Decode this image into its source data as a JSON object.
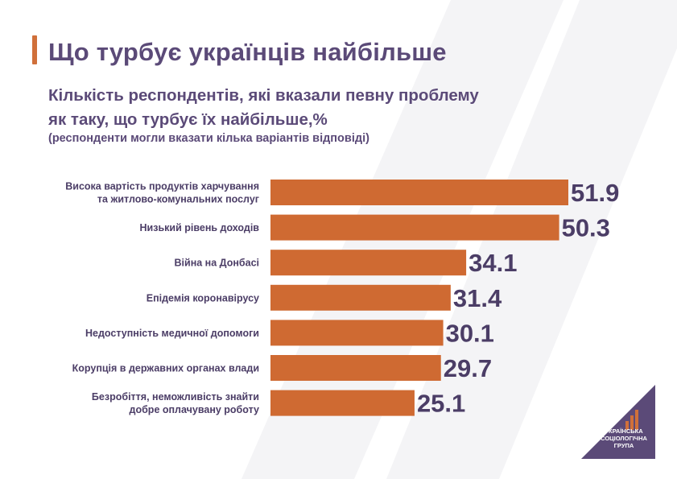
{
  "header": {
    "title": "Що турбує українців найбільше",
    "subtitle_lines": [
      "Кількість респондентів, які вказали певну проблему",
      "як таку, що турбує їх найбільше,%"
    ],
    "note": "(респонденти могли вказати кілька варіантів відповіді)"
  },
  "colors": {
    "bar": "#cf6a32",
    "text": "#5b4a78",
    "accent": "#d0703a",
    "logo_bg": "#5b4a78",
    "logo_bars": "#d0703a"
  },
  "logo": {
    "lines": [
      "Українська",
      "соціологічна",
      "група"
    ]
  },
  "chart_data": {
    "type": "bar",
    "orientation": "horizontal",
    "categories": [
      [
        "Висока вартість продуктів харчування",
        "та житлово-комунальних послуг"
      ],
      [
        "Низький рівень доходів"
      ],
      [
        "Війна на Донбасі"
      ],
      [
        "Епідемія коронавірусу"
      ],
      [
        "Недоступність медичної допомоги"
      ],
      [
        "Корупція в державних органах влади"
      ],
      [
        "Безробіття, неможливість знайти",
        "добре оплачувану роботу"
      ]
    ],
    "values": [
      51.9,
      50.3,
      34.1,
      31.4,
      30.1,
      29.7,
      25.1
    ],
    "value_labels": [
      "51.9",
      "50.3",
      "34.1",
      "31.4",
      "30.1",
      "29.7",
      "25.1"
    ],
    "xlim": [
      0,
      51.9
    ],
    "grid": false,
    "legend": "none"
  }
}
